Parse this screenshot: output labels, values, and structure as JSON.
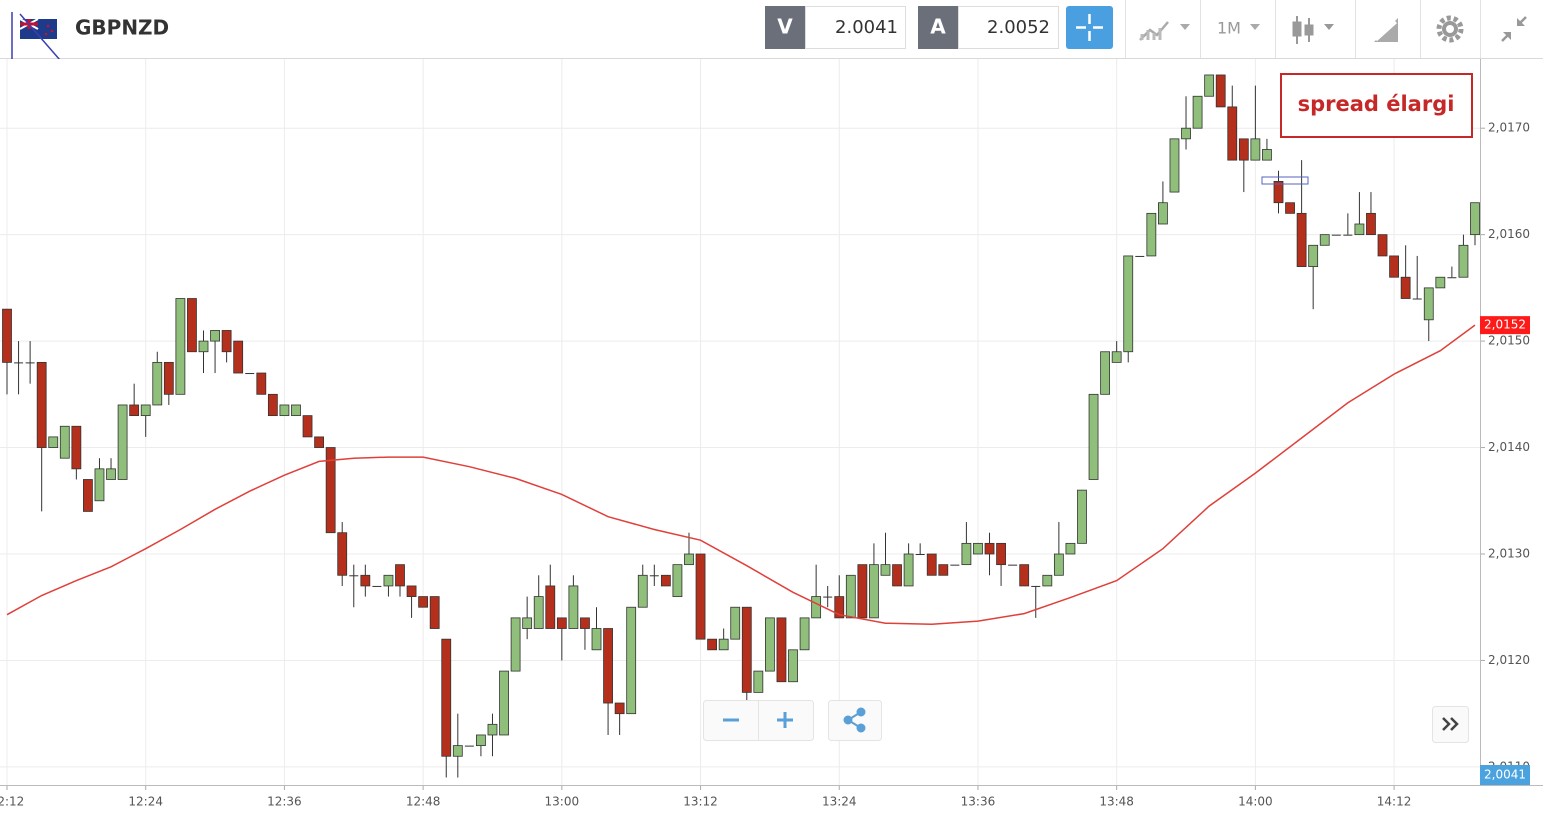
{
  "header": {
    "symbol": "GBPNZD",
    "sell_label": "V",
    "sell_price": "2.0041",
    "buy_label": "A",
    "buy_price": "2.0052",
    "timeframe": "1M"
  },
  "chart_data": {
    "type": "candlestick",
    "annotation": "spread élargi",
    "up_color": "#8fbf7a",
    "down_color": "#b5301c",
    "categories": [
      "12:12",
      null,
      null,
      null,
      null,
      null,
      null,
      null,
      null,
      null,
      null,
      null,
      "12:24",
      null,
      null,
      null,
      null,
      null,
      null,
      null,
      null,
      null,
      null,
      null,
      "12:36",
      null,
      null,
      null,
      null,
      null,
      null,
      null,
      null,
      null,
      null,
      null,
      "12:48",
      null,
      null,
      null,
      null,
      null,
      null,
      null,
      null,
      null,
      null,
      null,
      "13:00",
      null,
      null,
      null,
      null,
      null,
      null,
      null,
      null,
      null,
      null,
      null,
      "13:12",
      null,
      null,
      null,
      null,
      null,
      null,
      null,
      null,
      null,
      null,
      null,
      "13:24",
      null,
      null,
      null,
      null,
      null,
      null,
      null,
      null,
      null,
      null,
      null,
      "13:36",
      null,
      null,
      null,
      null,
      null,
      null,
      null,
      null,
      null,
      null,
      null,
      "13:48",
      null,
      null,
      null,
      null,
      null,
      null,
      null,
      null,
      null,
      null,
      null,
      "14:00",
      null,
      null,
      null,
      null,
      null,
      null,
      null,
      null,
      null,
      null,
      null,
      "14:12",
      null,
      null,
      null,
      null,
      null,
      null,
      null
    ],
    "open": [
      2.0153,
      2.0148,
      2.0148,
      2.0148,
      2.014,
      2.0139,
      2.0142,
      2.0137,
      2.0135,
      2.0137,
      2.0137,
      2.0144,
      2.0143,
      2.0144,
      2.0148,
      2.0145,
      2.0154,
      2.0149,
      2.015,
      2.0151,
      2.015,
      2.0147,
      2.0147,
      2.0145,
      2.0143,
      2.0143,
      2.0143,
      2.0141,
      2.014,
      2.0132,
      2.0128,
      2.0128,
      2.0127,
      2.0127,
      2.0129,
      2.0127,
      2.0126,
      2.0126,
      2.0122,
      2.0111,
      2.0112,
      2.0112,
      2.0113,
      2.0113,
      2.0119,
      2.0123,
      2.0123,
      2.0127,
      2.0124,
      2.0123,
      2.0124,
      2.0121,
      2.0123,
      2.0116,
      2.0115,
      2.0125,
      2.0128,
      2.0128,
      2.0126,
      2.0129,
      2.013,
      2.0122,
      2.0121,
      2.0122,
      2.0125,
      2.0117,
      2.0119,
      2.0124,
      2.0118,
      2.0121,
      2.0124,
      2.0126,
      2.0126,
      2.0124,
      2.0129,
      2.0124,
      2.0128,
      2.0129,
      2.0127,
      2.013,
      2.013,
      2.0129,
      2.0129,
      2.0129,
      2.013,
      2.0131,
      2.0131,
      2.0129,
      2.0129,
      2.0127,
      2.0127,
      2.0128,
      2.013,
      2.0131,
      2.0137,
      2.0145,
      2.0148,
      2.0149,
      2.0158,
      2.0158,
      2.0161,
      2.0164,
      2.0169,
      2.017,
      2.0173,
      2.0175,
      2.0172,
      2.0169,
      2.0167,
      2.0167,
      2.0165,
      2.0163,
      2.0162,
      2.0157,
      2.0159,
      2.016,
      2.016,
      2.016,
      2.0162,
      2.016,
      2.0158,
      2.0156,
      2.0154,
      2.0152,
      2.0155,
      2.0156,
      2.0156,
      2.016
    ],
    "high": [
      2.0153,
      2.015,
      2.015,
      2.0148,
      2.0141,
      2.0142,
      2.0142,
      2.0137,
      2.0139,
      2.0139,
      2.0144,
      2.0146,
      2.0144,
      2.0149,
      2.0148,
      2.0154,
      2.0154,
      2.0151,
      2.0151,
      2.0151,
      2.015,
      2.0147,
      2.0147,
      2.0145,
      2.0144,
      2.0144,
      2.0143,
      2.0141,
      2.014,
      2.0133,
      2.0129,
      2.0129,
      2.0127,
      2.0128,
      2.0129,
      2.0127,
      2.0126,
      2.0126,
      2.0122,
      2.0115,
      2.0112,
      2.0113,
      2.0115,
      2.0119,
      2.0124,
      2.0126,
      2.0128,
      2.0129,
      2.0124,
      2.0128,
      2.0124,
      2.0125,
      2.0123,
      2.0116,
      2.0125,
      2.0129,
      2.0129,
      2.0128,
      2.0129,
      2.0132,
      2.013,
      2.0122,
      2.0123,
      2.0125,
      2.0125,
      2.0119,
      2.0124,
      2.0124,
      2.0121,
      2.0124,
      2.0129,
      2.0127,
      2.0128,
      2.0128,
      2.0129,
      2.0131,
      2.0132,
      2.0129,
      2.0131,
      2.0131,
      2.013,
      2.0129,
      2.0129,
      2.0133,
      2.0131,
      2.0132,
      2.0131,
      2.0129,
      2.0129,
      2.0127,
      2.0128,
      2.0133,
      2.0131,
      2.0136,
      2.0145,
      2.0149,
      2.015,
      2.0158,
      2.0158,
      2.0162,
      2.0165,
      2.0169,
      2.0173,
      2.0173,
      2.0175,
      2.0175,
      2.0174,
      2.0169,
      2.0174,
      2.0169,
      2.0166,
      2.0163,
      2.0167,
      2.0159,
      2.016,
      2.016,
      2.0162,
      2.0164,
      2.0164,
      2.016,
      2.0158,
      2.0159,
      2.0158,
      2.0155,
      2.0156,
      2.0157,
      2.016,
      2.0163
    ],
    "low": [
      2.0145,
      2.0145,
      2.0146,
      2.0134,
      2.014,
      2.0139,
      2.0137,
      2.0134,
      2.0135,
      2.0137,
      2.0137,
      2.0143,
      2.0141,
      2.0144,
      2.0144,
      2.0145,
      2.0149,
      2.0147,
      2.0147,
      2.0148,
      2.0147,
      2.0147,
      2.0145,
      2.0143,
      2.0143,
      2.0143,
      2.0141,
      2.014,
      2.0132,
      2.0127,
      2.0125,
      2.0126,
      2.0127,
      2.0126,
      2.0126,
      2.0124,
      2.0125,
      2.0123,
      2.0109,
      2.0109,
      2.0112,
      2.0111,
      2.0111,
      2.0113,
      2.0119,
      2.0122,
      2.0123,
      2.0123,
      2.012,
      2.0123,
      2.0121,
      2.0121,
      2.0113,
      2.0113,
      2.0115,
      2.0125,
      2.0127,
      2.0127,
      2.0126,
      2.0129,
      2.0122,
      2.0121,
      2.0121,
      2.0122,
      2.0116,
      2.0117,
      2.0119,
      2.0118,
      2.0118,
      2.0121,
      2.0124,
      2.0125,
      2.0124,
      2.0124,
      2.0124,
      2.0124,
      2.0128,
      2.0127,
      2.0127,
      2.013,
      2.0128,
      2.0128,
      2.0129,
      2.0129,
      2.013,
      2.0128,
      2.0127,
      2.0129,
      2.0127,
      2.0124,
      2.0127,
      2.0128,
      2.013,
      2.0131,
      2.0137,
      2.0145,
      2.0148,
      2.0148,
      2.0158,
      2.0158,
      2.0161,
      2.0164,
      2.0168,
      2.017,
      2.0173,
      2.0172,
      2.0167,
      2.0164,
      2.0167,
      2.0167,
      2.0162,
      2.0162,
      2.0157,
      2.0153,
      2.0159,
      2.016,
      2.016,
      2.016,
      2.016,
      2.0158,
      2.0156,
      2.0154,
      2.0154,
      2.015,
      2.0155,
      2.0156,
      2.0156,
      2.0159
    ],
    "close": [
      2.0148,
      2.0148,
      2.0148,
      2.014,
      2.0141,
      2.0142,
      2.0138,
      2.0134,
      2.0138,
      2.0138,
      2.0144,
      2.0143,
      2.0144,
      2.0148,
      2.0145,
      2.0154,
      2.0149,
      2.015,
      2.0151,
      2.0149,
      2.0147,
      2.0147,
      2.0145,
      2.0143,
      2.0144,
      2.0144,
      2.0141,
      2.014,
      2.0132,
      2.0128,
      2.0128,
      2.0127,
      2.0127,
      2.0128,
      2.0127,
      2.0126,
      2.0125,
      2.0123,
      2.0111,
      2.0112,
      2.0112,
      2.0113,
      2.0114,
      2.0119,
      2.0124,
      2.0124,
      2.0126,
      2.0123,
      2.0123,
      2.0127,
      2.0123,
      2.0123,
      2.0116,
      2.0115,
      2.0125,
      2.0128,
      2.0128,
      2.0127,
      2.0129,
      2.013,
      2.0122,
      2.0121,
      2.0122,
      2.0125,
      2.0117,
      2.0119,
      2.0124,
      2.0118,
      2.0121,
      2.0124,
      2.0126,
      2.0126,
      2.0124,
      2.0128,
      2.0124,
      2.0129,
      2.0129,
      2.0127,
      2.013,
      2.013,
      2.0128,
      2.0128,
      2.0129,
      2.0131,
      2.0131,
      2.013,
      2.0129,
      2.0129,
      2.0127,
      2.0127,
      2.0128,
      2.013,
      2.0131,
      2.0136,
      2.0145,
      2.0149,
      2.0149,
      2.0158,
      2.0158,
      2.0162,
      2.0163,
      2.0169,
      2.017,
      2.0173,
      2.0175,
      2.0172,
      2.0167,
      2.0167,
      2.0169,
      2.0168,
      2.0163,
      2.0162,
      2.0157,
      2.0159,
      2.016,
      2.016,
      2.016,
      2.0161,
      2.016,
      2.0158,
      2.0156,
      2.0154,
      2.0154,
      2.0155,
      2.0156,
      2.0156,
      2.0159,
      2.0163
    ],
    "ma": {
      "color": "#e0403a",
      "x": [
        0,
        3,
        6,
        9,
        12,
        15,
        18,
        21,
        24,
        27,
        30,
        33,
        36,
        40,
        44,
        48,
        52,
        56,
        60,
        64,
        68,
        72,
        76,
        80,
        84,
        88,
        92,
        96,
        100,
        104,
        108,
        112,
        116,
        120,
        124,
        127
      ],
      "values": [
        2.01243,
        2.01261,
        2.01275,
        2.01288,
        2.01305,
        2.01323,
        2.01342,
        2.01359,
        2.01374,
        2.01387,
        2.0139,
        2.01391,
        2.01391,
        2.01382,
        2.01371,
        2.01356,
        2.01335,
        2.01323,
        2.01313,
        2.01289,
        2.01264,
        2.01243,
        2.01235,
        2.01234,
        2.01237,
        2.01244,
        2.01259,
        2.01275,
        2.01305,
        2.01345,
        2.01376,
        2.01409,
        2.01442,
        2.01469,
        2.01491,
        2.01515
      ],
      "tag": "2,0152"
    },
    "bid_tag": "2,0041",
    "ylim": [
      2.01083,
      2.01765
    ],
    "yticks": [
      {
        "value": 2.011,
        "label": "2,0110"
      },
      {
        "value": 2.012,
        "label": "2,0120"
      },
      {
        "value": 2.013,
        "label": "2,0130"
      },
      {
        "value": 2.014,
        "label": "2,0140"
      },
      {
        "value": 2.015,
        "label": "2,0150"
      },
      {
        "value": 2.016,
        "label": "2,0160"
      },
      {
        "value": 2.017,
        "label": "2,0170"
      }
    ],
    "grid": true
  }
}
